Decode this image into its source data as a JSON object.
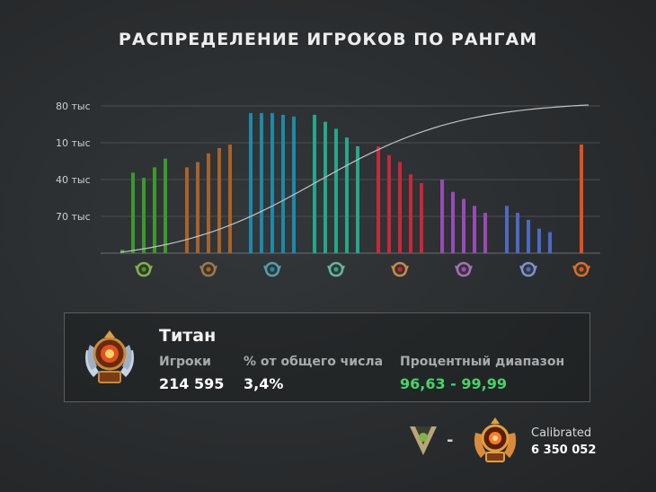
{
  "title": "РАСПРЕДЕЛЕНИЕ ИГРОКОВ ПО РАНГАМ",
  "chart_data": {
    "type": "bar",
    "y_tick_labels": [
      "80 тыс",
      "10 тыс",
      "40 тыс",
      "70 тыс"
    ],
    "y_value_scale": [
      0,
      82000
    ],
    "groups": [
      {
        "rank": "Рекрут",
        "color": "#3b9a2a",
        "emblem_color": "#7fb347",
        "values": [
          2000,
          46000,
          43000,
          49000,
          54000
        ]
      },
      {
        "rank": "Страж",
        "color": "#a8622a",
        "emblem_color": "#9b7a47",
        "values": [
          49000,
          52000,
          57000,
          60000,
          62000
        ]
      },
      {
        "rank": "Рыцарь",
        "color": "#1c8aa8",
        "emblem_color": "#4f9fb3",
        "values": [
          80000,
          80000,
          80000,
          79000,
          78000
        ]
      },
      {
        "rank": "Герой",
        "color": "#22a98a",
        "emblem_color": "#5fb9a0",
        "values": [
          79000,
          75000,
          71000,
          66000,
          61000
        ]
      },
      {
        "rank": "Легенда",
        "color": "#c9283a",
        "emblem_color": "#c98a4a",
        "values": [
          61000,
          56000,
          52000,
          45000,
          40000
        ]
      },
      {
        "rank": "Властелин",
        "color": "#9a4ab8",
        "emblem_color": "#a46fc0",
        "values": [
          42000,
          35000,
          31000,
          27000,
          23000
        ]
      },
      {
        "rank": "Божество",
        "color": "#4c69c4",
        "emblem_color": "#7a92d6",
        "values": [
          27000,
          23000,
          19000,
          14000,
          12000
        ]
      },
      {
        "rank": "Титан",
        "color": "#e0521e",
        "emblem_color": "#d9702a",
        "values": [
          62000
        ]
      }
    ],
    "cumulative_line": {
      "color": "#bfc3c6",
      "start": 0,
      "end": 100
    }
  },
  "panel": {
    "rank_name": "Титан",
    "players_label": "Игроки",
    "players_value": "214 595",
    "share_label": "% от общего числа",
    "share_value": "3,4%",
    "range_label": "Процентный диапазон",
    "range_value": "96,63 - 99,99",
    "range_color": "#49d26a"
  },
  "footer": {
    "dash": "-",
    "calibrated_label": "Calibrated",
    "calibrated_value": "6 350 052"
  },
  "icons": {
    "panel_emblem": "titan-rank-emblem-icon",
    "footer_emblem_left": "herald-rank-emblem-icon",
    "footer_emblem_right": "titan-rank-emblem-icon"
  }
}
